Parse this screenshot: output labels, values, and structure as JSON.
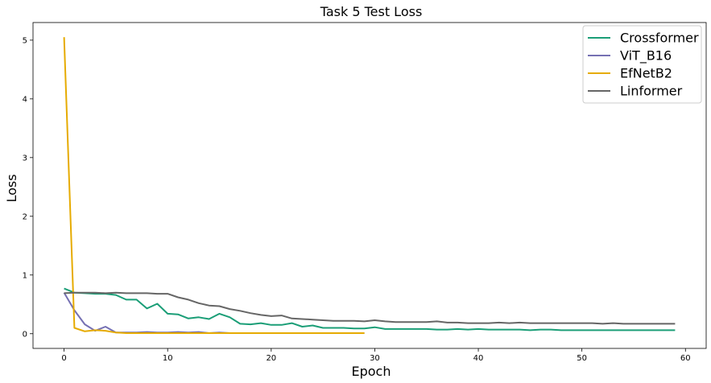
{
  "chart_data": {
    "type": "line",
    "title": "Task 5 Test Loss",
    "xlabel": "Epoch",
    "ylabel": "Loss",
    "xlim": [
      -3,
      62
    ],
    "ylim": [
      -0.25,
      5.3
    ],
    "xticks": [
      0,
      10,
      20,
      30,
      40,
      50,
      60
    ],
    "yticks": [
      0,
      1,
      2,
      3,
      4,
      5
    ],
    "grid": false,
    "legend_position": "top-right",
    "series": [
      {
        "name": "Crossformer",
        "color": "#1b9e77",
        "x": [
          0,
          1,
          2,
          3,
          4,
          5,
          6,
          7,
          8,
          9,
          10,
          11,
          12,
          13,
          14,
          15,
          16,
          17,
          18,
          19,
          20,
          21,
          22,
          23,
          24,
          25,
          26,
          27,
          28,
          29,
          30,
          31,
          32,
          33,
          34,
          35,
          36,
          37,
          38,
          39,
          40,
          41,
          42,
          43,
          44,
          45,
          46,
          47,
          48,
          49,
          50,
          51,
          52,
          53,
          54,
          55,
          56,
          57,
          58,
          59
        ],
        "y": [
          0.77,
          0.7,
          0.69,
          0.68,
          0.68,
          0.66,
          0.58,
          0.58,
          0.43,
          0.51,
          0.34,
          0.33,
          0.26,
          0.28,
          0.25,
          0.34,
          0.28,
          0.17,
          0.16,
          0.18,
          0.15,
          0.15,
          0.18,
          0.12,
          0.14,
          0.1,
          0.1,
          0.1,
          0.09,
          0.09,
          0.11,
          0.08,
          0.08,
          0.08,
          0.08,
          0.08,
          0.07,
          0.07,
          0.08,
          0.07,
          0.08,
          0.07,
          0.07,
          0.07,
          0.07,
          0.06,
          0.07,
          0.07,
          0.06,
          0.06,
          0.06,
          0.06,
          0.06,
          0.06,
          0.06,
          0.06,
          0.06,
          0.06,
          0.06,
          0.06
        ]
      },
      {
        "name": "ViT_B16",
        "color": "#7570b3",
        "x": [
          0,
          1,
          2,
          3,
          4,
          5,
          6,
          7,
          8,
          9,
          10,
          11,
          12,
          13,
          14,
          15,
          16,
          17,
          18,
          19,
          20,
          21,
          22,
          23,
          24,
          25,
          26,
          27,
          28,
          29
        ],
        "y": [
          0.7,
          0.4,
          0.16,
          0.05,
          0.12,
          0.02,
          0.02,
          0.02,
          0.03,
          0.02,
          0.02,
          0.03,
          0.02,
          0.03,
          0.01,
          0.02,
          0.01,
          0.01,
          0.01,
          0.01,
          0.01,
          0.01,
          0.01,
          0.01,
          0.01,
          0.01,
          0.01,
          0.01,
          0.01,
          0.01
        ]
      },
      {
        "name": "EfNetB2",
        "color": "#e6ab02",
        "x": [
          0,
          1,
          2,
          3,
          4,
          5,
          6,
          7,
          8,
          9,
          10,
          11,
          12,
          13,
          14,
          15,
          16,
          17,
          18,
          19,
          20,
          21,
          22,
          23,
          24,
          25,
          26,
          27,
          28,
          29
        ],
        "y": [
          5.05,
          0.1,
          0.04,
          0.06,
          0.05,
          0.02,
          0.01,
          0.01,
          0.01,
          0.01,
          0.01,
          0.01,
          0.01,
          0.01,
          0.01,
          0.01,
          0.01,
          0.01,
          0.01,
          0.01,
          0.01,
          0.01,
          0.01,
          0.01,
          0.01,
          0.01,
          0.01,
          0.01,
          0.01,
          0.01
        ]
      },
      {
        "name": "Linformer",
        "color": "#666666",
        "x": [
          0,
          1,
          2,
          3,
          4,
          5,
          6,
          7,
          8,
          9,
          10,
          11,
          12,
          13,
          14,
          15,
          16,
          17,
          18,
          19,
          20,
          21,
          22,
          23,
          24,
          25,
          26,
          27,
          28,
          29,
          30,
          31,
          32,
          33,
          34,
          35,
          36,
          37,
          38,
          39,
          40,
          41,
          42,
          43,
          44,
          45,
          46,
          47,
          48,
          49,
          50,
          51,
          52,
          53,
          54,
          55,
          56,
          57,
          58,
          59
        ],
        "y": [
          0.69,
          0.7,
          0.7,
          0.7,
          0.69,
          0.7,
          0.69,
          0.69,
          0.69,
          0.68,
          0.68,
          0.62,
          0.58,
          0.52,
          0.48,
          0.47,
          0.42,
          0.39,
          0.35,
          0.32,
          0.3,
          0.31,
          0.26,
          0.25,
          0.24,
          0.23,
          0.22,
          0.22,
          0.22,
          0.21,
          0.23,
          0.21,
          0.2,
          0.2,
          0.2,
          0.2,
          0.21,
          0.19,
          0.19,
          0.18,
          0.18,
          0.18,
          0.19,
          0.18,
          0.19,
          0.18,
          0.18,
          0.18,
          0.18,
          0.18,
          0.18,
          0.18,
          0.17,
          0.18,
          0.17,
          0.17,
          0.17,
          0.17,
          0.17,
          0.17
        ]
      }
    ]
  }
}
